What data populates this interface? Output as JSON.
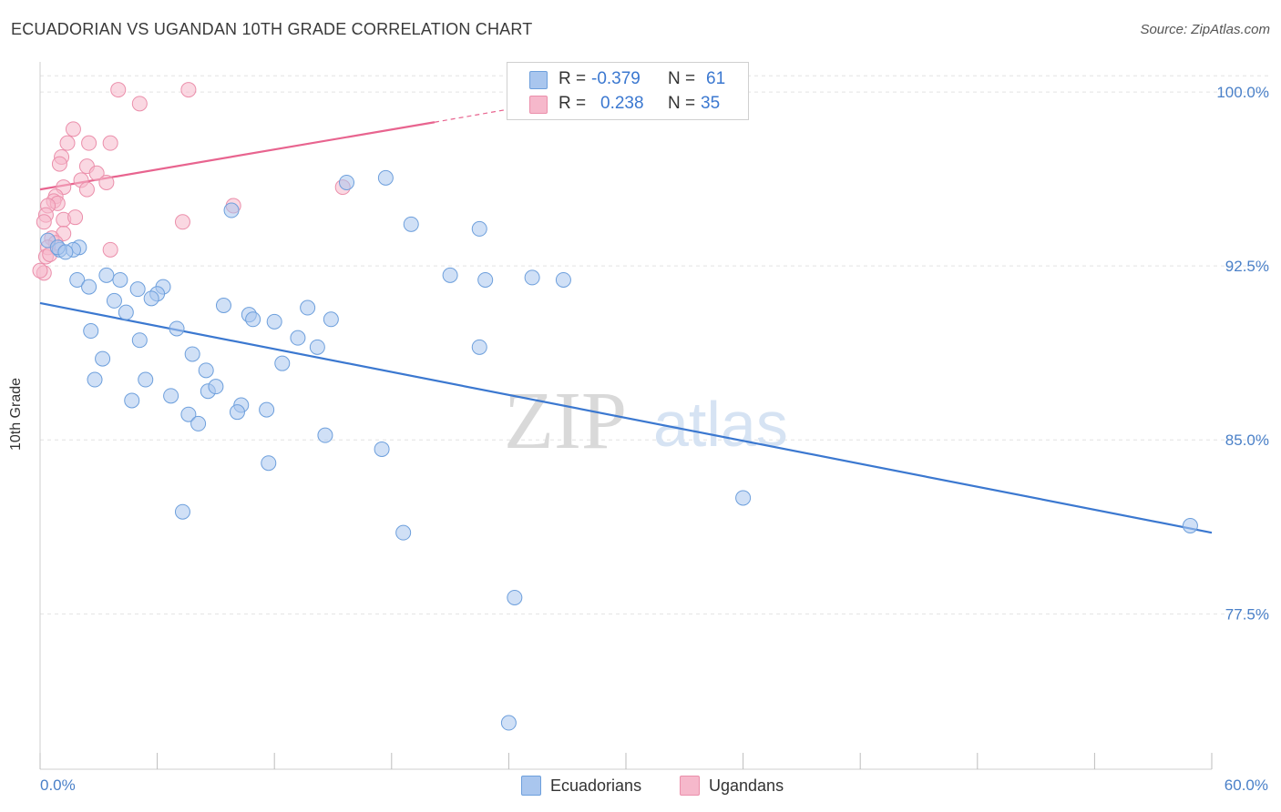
{
  "title": "ECUADORIAN VS UGANDAN 10TH GRADE CORRELATION CHART",
  "source": "Source: ZipAtlas.com",
  "watermark": {
    "zip": "ZIP",
    "atlas": "atlas"
  },
  "legend": {
    "rows": [
      {
        "r_label": "R = ",
        "r_value": "-0.379",
        "n_label": "N = ",
        "n_value": "61",
        "color": "#a9c6ee"
      },
      {
        "r_label": "R = ",
        "r_value": "0.238",
        "n_label": "N = ",
        "n_value": "35",
        "color": "#f6b8cb"
      }
    ]
  },
  "bottom_legend": {
    "ecuadorians": "Ecuadorians",
    "ugandans": "Ugandans"
  },
  "colors": {
    "blue_fill": "#a9c6ee",
    "blue_stroke": "#6d9fdc",
    "blue_line": "#3b78d0",
    "pink_fill": "#f6b8cb",
    "pink_stroke": "#eb8fab",
    "pink_line": "#e8648f",
    "tick_label": "#4a80c8",
    "grid": "#e3e3e3"
  },
  "chart_data": {
    "type": "scatter",
    "title": "ECUADORIAN VS UGANDAN 10TH GRADE CORRELATION CHART",
    "xlabel": "",
    "ylabel": "10th Grade",
    "xlim": [
      0,
      60
    ],
    "ylim": [
      70.8,
      101.3
    ],
    "x_tick_labels": [
      "0.0%",
      "60.0%"
    ],
    "y_ticks": [
      77.5,
      85.0,
      92.5,
      100.0
    ],
    "y_tick_labels": [
      "77.5%",
      "85.0%",
      "92.5%",
      "100.0%"
    ],
    "grid": true,
    "series": [
      {
        "name": "Ecuadorians",
        "r": -0.379,
        "n": 61,
        "trend": {
          "x": [
            0,
            60
          ],
          "y": [
            90.9,
            81.0
          ]
        },
        "points": [
          [
            0.4,
            93.6
          ],
          [
            1.0,
            93.2
          ],
          [
            2.0,
            93.3
          ],
          [
            1.7,
            93.2
          ],
          [
            1.9,
            91.9
          ],
          [
            3.4,
            92.1
          ],
          [
            4.1,
            91.9
          ],
          [
            2.5,
            91.6
          ],
          [
            5.0,
            91.5
          ],
          [
            3.8,
            91.0
          ],
          [
            6.3,
            91.6
          ],
          [
            6.0,
            91.3
          ],
          [
            5.7,
            91.1
          ],
          [
            4.4,
            90.5
          ],
          [
            2.6,
            89.7
          ],
          [
            7.0,
            89.8
          ],
          [
            5.1,
            89.3
          ],
          [
            9.4,
            90.8
          ],
          [
            10.7,
            90.4
          ],
          [
            10.9,
            90.2
          ],
          [
            12.0,
            90.1
          ],
          [
            13.7,
            90.7
          ],
          [
            14.9,
            90.2
          ],
          [
            13.2,
            89.4
          ],
          [
            14.2,
            89.0
          ],
          [
            7.8,
            88.7
          ],
          [
            8.5,
            88.0
          ],
          [
            12.4,
            88.3
          ],
          [
            3.2,
            88.5
          ],
          [
            2.8,
            87.6
          ],
          [
            5.4,
            87.6
          ],
          [
            8.6,
            87.1
          ],
          [
            9.0,
            87.3
          ],
          [
            6.7,
            86.9
          ],
          [
            4.7,
            86.7
          ],
          [
            10.3,
            86.5
          ],
          [
            7.6,
            86.1
          ],
          [
            10.1,
            86.2
          ],
          [
            11.6,
            86.3
          ],
          [
            8.1,
            85.7
          ],
          [
            14.6,
            85.2
          ],
          [
            17.5,
            84.6
          ],
          [
            11.7,
            84.0
          ],
          [
            15.7,
            96.1
          ],
          [
            17.7,
            96.3
          ],
          [
            9.8,
            94.9
          ],
          [
            19.0,
            94.3
          ],
          [
            22.5,
            94.1
          ],
          [
            21.0,
            92.1
          ],
          [
            22.8,
            91.9
          ],
          [
            25.2,
            92.0
          ],
          [
            26.8,
            91.9
          ],
          [
            22.5,
            89.0
          ],
          [
            36.0,
            82.5
          ],
          [
            7.3,
            81.9
          ],
          [
            18.6,
            81.0
          ],
          [
            24.3,
            78.2
          ],
          [
            24.0,
            72.8
          ],
          [
            58.9,
            81.3
          ],
          [
            0.9,
            93.3
          ],
          [
            1.3,
            93.1
          ]
        ]
      },
      {
        "name": "Ugandans",
        "r": 0.238,
        "n": 35,
        "trend": {
          "x": [
            0,
            20.2
          ],
          "y": [
            95.8,
            98.7
          ]
        },
        "trend_extension": {
          "x": [
            20.2,
            27.0
          ],
          "y": [
            98.7,
            99.7
          ]
        },
        "points": [
          [
            4.0,
            100.1
          ],
          [
            7.6,
            100.1
          ],
          [
            5.1,
            99.5
          ],
          [
            1.7,
            98.4
          ],
          [
            1.4,
            97.8
          ],
          [
            2.5,
            97.8
          ],
          [
            3.6,
            97.8
          ],
          [
            1.1,
            97.2
          ],
          [
            2.4,
            96.8
          ],
          [
            1.0,
            96.9
          ],
          [
            2.9,
            96.5
          ],
          [
            2.1,
            96.2
          ],
          [
            3.4,
            96.1
          ],
          [
            15.5,
            95.9
          ],
          [
            2.4,
            95.8
          ],
          [
            1.2,
            95.9
          ],
          [
            0.8,
            95.5
          ],
          [
            0.7,
            95.3
          ],
          [
            0.9,
            95.2
          ],
          [
            0.4,
            95.1
          ],
          [
            0.3,
            94.7
          ],
          [
            1.2,
            94.5
          ],
          [
            0.2,
            94.4
          ],
          [
            9.9,
            95.1
          ],
          [
            7.3,
            94.4
          ],
          [
            1.2,
            93.9
          ],
          [
            0.6,
            93.7
          ],
          [
            0.8,
            93.5
          ],
          [
            0.4,
            93.3
          ],
          [
            3.6,
            93.2
          ],
          [
            0.3,
            92.9
          ],
          [
            0.2,
            92.2
          ],
          [
            0.0,
            92.3
          ],
          [
            0.5,
            93.0
          ],
          [
            1.8,
            94.6
          ]
        ]
      }
    ]
  }
}
